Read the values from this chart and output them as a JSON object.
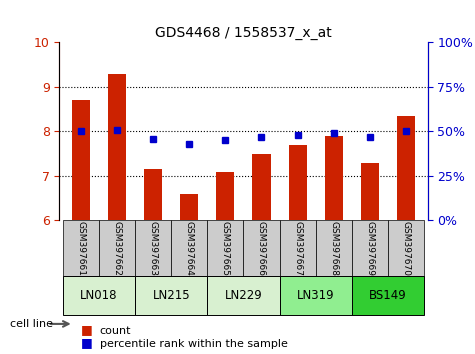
{
  "title": "GDS4468 / 1558537_x_at",
  "samples": [
    "GSM397661",
    "GSM397662",
    "GSM397663",
    "GSM397664",
    "GSM397665",
    "GSM397666",
    "GSM397667",
    "GSM397668",
    "GSM397669",
    "GSM397670"
  ],
  "count_values": [
    8.7,
    9.3,
    7.15,
    6.6,
    7.1,
    7.5,
    7.7,
    7.9,
    7.3,
    8.35
  ],
  "percentile_values": [
    50,
    51,
    46,
    43,
    45,
    47,
    48,
    49,
    47,
    50
  ],
  "cell_lines": [
    {
      "name": "LN018",
      "samples": [
        0,
        1
      ],
      "color": "#d8f0d0"
    },
    {
      "name": "LN215",
      "samples": [
        2,
        3
      ],
      "color": "#d8f0d0"
    },
    {
      "name": "LN229",
      "samples": [
        4,
        5
      ],
      "color": "#d8f0d0"
    },
    {
      "name": "LN319",
      "samples": [
        6,
        7
      ],
      "color": "#90ee90"
    },
    {
      "name": "BS149",
      "samples": [
        8,
        9
      ],
      "color": "#32cd32"
    }
  ],
  "ylim_left": [
    6,
    10
  ],
  "ylim_right": [
    0,
    100
  ],
  "yticks_left": [
    6,
    7,
    8,
    9,
    10
  ],
  "yticks_right": [
    0,
    25,
    50,
    75,
    100
  ],
  "bar_color": "#cc2200",
  "dot_color": "#0000cc",
  "bar_width": 0.5,
  "ylabel_left_color": "#cc2200",
  "ylabel_right_color": "#0000cc",
  "grid_color": "#000000",
  "xlabel_color": "#333333",
  "sample_bg_color": "#cccccc"
}
